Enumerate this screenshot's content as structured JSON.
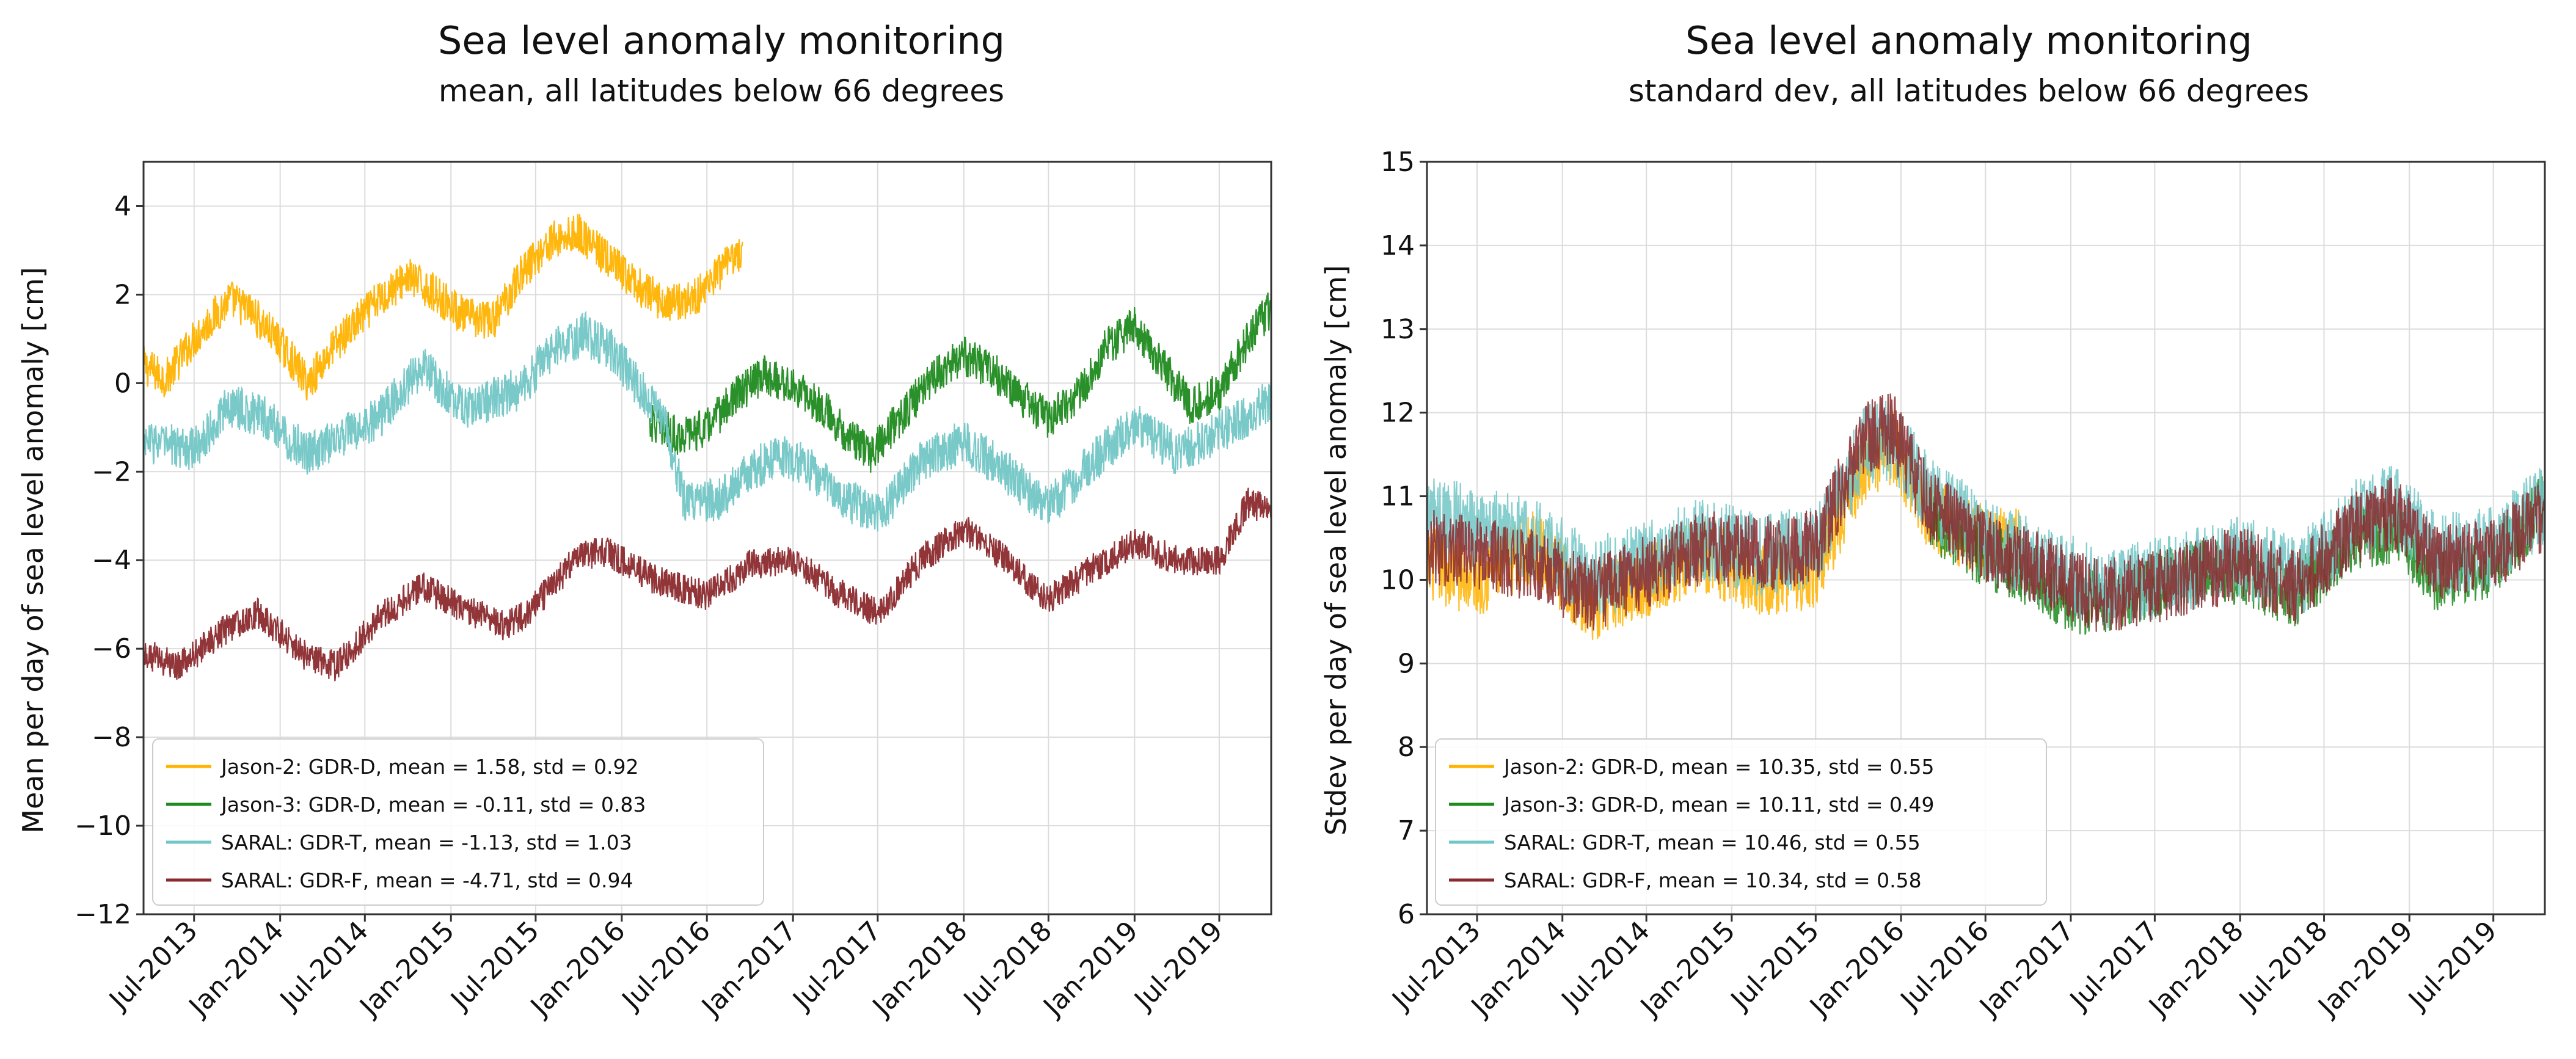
{
  "chart_data": [
    {
      "type": "line",
      "title": "Sea level anomaly monitoring",
      "subtitle": "mean, all latitudes below 66 degrees",
      "xlabel": "",
      "ylabel": "Mean per day of sea level anomaly [cm]",
      "ylim": [
        -12,
        5
      ],
      "yticks": [
        4,
        2,
        0,
        -2,
        -4,
        -6,
        -8,
        -10,
        -12
      ],
      "ytick_labels": [
        "4",
        "2",
        "0",
        "−2",
        "−4",
        "−6",
        "−8",
        "−10",
        "−12"
      ],
      "xlim": [
        "2013-03-15",
        "2019-10-20"
      ],
      "xticks": [
        "2013-07-01",
        "2014-01-01",
        "2014-07-01",
        "2015-01-01",
        "2015-07-01",
        "2016-01-01",
        "2016-07-01",
        "2017-01-01",
        "2017-07-01",
        "2018-01-01",
        "2018-07-01",
        "2019-01-01",
        "2019-07-01"
      ],
      "xtick_labels": [
        "Jul-2013",
        "Jan-2014",
        "Jul-2014",
        "Jan-2015",
        "Jul-2015",
        "Jan-2016",
        "Jul-2016",
        "Jan-2017",
        "Jul-2017",
        "Jan-2018",
        "Jul-2018",
        "Jan-2019",
        "Jul-2019"
      ],
      "grid": true,
      "legend_position": "lower-left",
      "series": [
        {
          "name": "Jason-2: GDR-D, mean = 1.58, std = 0.92",
          "color": "#ffb300",
          "start": "2013-03-15",
          "end": "2016-09-15",
          "noise": 0.45,
          "points": [
            [
              "2013-03-15",
              0.4
            ],
            [
              "2013-05-01",
              0.1
            ],
            [
              "2013-07-01",
              1.0
            ],
            [
              "2013-09-15",
              1.9
            ],
            [
              "2013-11-01",
              1.6
            ],
            [
              "2014-01-01",
              0.9
            ],
            [
              "2014-03-01",
              0.0
            ],
            [
              "2014-05-01",
              0.9
            ],
            [
              "2014-08-01",
              1.9
            ],
            [
              "2014-10-01",
              2.4
            ],
            [
              "2014-12-01",
              2.0
            ],
            [
              "2015-02-01",
              1.5
            ],
            [
              "2015-04-01",
              1.4
            ],
            [
              "2015-06-01",
              2.5
            ],
            [
              "2015-08-01",
              3.2
            ],
            [
              "2015-10-01",
              3.4
            ],
            [
              "2015-12-01",
              2.8
            ],
            [
              "2016-02-01",
              2.2
            ],
            [
              "2016-04-01",
              1.8
            ],
            [
              "2016-06-01",
              1.9
            ],
            [
              "2016-09-15",
              3.0
            ]
          ]
        },
        {
          "name": "Jason-3: GDR-D, mean = -0.11, std = 0.83",
          "color": "#1f8a1f",
          "start": "2016-03-01",
          "end": "2019-10-20",
          "noise": 0.45,
          "points": [
            [
              "2016-03-01",
              -0.9
            ],
            [
              "2016-05-01",
              -1.2
            ],
            [
              "2016-07-01",
              -1.0
            ],
            [
              "2016-09-01",
              -0.3
            ],
            [
              "2016-11-01",
              0.2
            ],
            [
              "2017-01-01",
              -0.1
            ],
            [
              "2017-03-01",
              -0.5
            ],
            [
              "2017-05-01",
              -1.2
            ],
            [
              "2017-06-15",
              -1.6
            ],
            [
              "2017-09-01",
              -0.6
            ],
            [
              "2017-11-01",
              0.2
            ],
            [
              "2018-01-01",
              0.6
            ],
            [
              "2018-03-01",
              0.3
            ],
            [
              "2018-05-01",
              -0.3
            ],
            [
              "2018-07-01",
              -0.8
            ],
            [
              "2018-09-01",
              -0.3
            ],
            [
              "2018-11-01",
              0.8
            ],
            [
              "2019-01-01",
              1.3
            ],
            [
              "2019-03-01",
              0.4
            ],
            [
              "2019-05-01",
              -0.5
            ],
            [
              "2019-07-01",
              -0.2
            ],
            [
              "2019-09-01",
              1.0
            ],
            [
              "2019-10-20",
              1.7
            ]
          ]
        },
        {
          "name": "SARAL: GDR-T, mean = -1.13, std = 1.03",
          "color": "#72c6c6",
          "start": "2013-03-15",
          "end": "2019-10-20",
          "noise": 0.5,
          "points": [
            [
              "2013-03-15",
              -1.3
            ],
            [
              "2013-07-01",
              -1.5
            ],
            [
              "2013-09-15",
              -0.5
            ],
            [
              "2013-12-01",
              -0.8
            ],
            [
              "2014-03-01",
              -1.6
            ],
            [
              "2014-08-01",
              -0.8
            ],
            [
              "2014-11-01",
              0.4
            ],
            [
              "2015-02-01",
              -0.6
            ],
            [
              "2015-06-01",
              -0.1
            ],
            [
              "2015-08-01",
              0.7
            ],
            [
              "2015-10-15",
              1.1
            ],
            [
              "2015-12-15",
              0.7
            ],
            [
              "2016-02-01",
              0.0
            ],
            [
              "2016-04-01",
              -0.9
            ],
            [
              "2016-05-15",
              -2.7
            ],
            [
              "2016-08-01",
              -2.6
            ],
            [
              "2016-10-01",
              -2.0
            ],
            [
              "2016-12-01",
              -1.6
            ],
            [
              "2017-02-01",
              -1.9
            ],
            [
              "2017-04-01",
              -2.5
            ],
            [
              "2017-07-01",
              -3.0
            ],
            [
              "2017-10-01",
              -1.8
            ],
            [
              "2018-01-01",
              -1.3
            ],
            [
              "2018-04-01",
              -2.0
            ],
            [
              "2018-07-01",
              -2.8
            ],
            [
              "2018-10-01",
              -1.8
            ],
            [
              "2019-01-01",
              -0.9
            ],
            [
              "2019-04-01",
              -1.6
            ],
            [
              "2019-07-01",
              -1.1
            ],
            [
              "2019-10-20",
              -0.4
            ]
          ]
        },
        {
          "name": "SARAL: GDR-F, mean = -4.71, std = 0.94",
          "color": "#8b2a2e",
          "start": "2013-03-15",
          "end": "2019-10-20",
          "noise": 0.35,
          "points": [
            [
              "2013-03-15",
              -6.1
            ],
            [
              "2013-06-01",
              -6.4
            ],
            [
              "2013-09-01",
              -5.6
            ],
            [
              "2013-11-15",
              -5.2
            ],
            [
              "2014-03-01",
              -6.2
            ],
            [
              "2014-05-01",
              -6.4
            ],
            [
              "2014-08-01",
              -5.3
            ],
            [
              "2014-11-01",
              -4.6
            ],
            [
              "2015-02-01",
              -5.1
            ],
            [
              "2015-05-01",
              -5.5
            ],
            [
              "2015-07-01",
              -5.0
            ],
            [
              "2015-10-01",
              -3.9
            ],
            [
              "2015-12-01",
              -3.8
            ],
            [
              "2016-03-01",
              -4.4
            ],
            [
              "2016-07-01",
              -4.8
            ],
            [
              "2016-10-01",
              -4.1
            ],
            [
              "2017-01-01",
              -4.0
            ],
            [
              "2017-04-01",
              -4.7
            ],
            [
              "2017-07-01",
              -5.2
            ],
            [
              "2017-10-01",
              -4.0
            ],
            [
              "2018-01-01",
              -3.3
            ],
            [
              "2018-04-01",
              -4.0
            ],
            [
              "2018-07-01",
              -4.9
            ],
            [
              "2018-10-01",
              -4.2
            ],
            [
              "2019-01-01",
              -3.6
            ],
            [
              "2019-04-01",
              -4.0
            ],
            [
              "2019-07-01",
              -4.0
            ],
            [
              "2019-09-01",
              -2.7
            ],
            [
              "2019-10-20",
              -2.9
            ]
          ]
        }
      ]
    },
    {
      "type": "line",
      "title": "Sea level anomaly monitoring",
      "subtitle": "standard dev, all latitudes below 66 degrees",
      "xlabel": "",
      "ylabel": "Stdev per day of sea level anomaly [cm]",
      "ylim": [
        6,
        15
      ],
      "yticks": [
        15,
        14,
        13,
        12,
        11,
        10,
        9,
        8,
        7,
        6
      ],
      "ytick_labels": [
        "15",
        "14",
        "13",
        "12",
        "11",
        "10",
        "9",
        "8",
        "7",
        "6"
      ],
      "xlim": [
        "2013-03-15",
        "2019-10-20"
      ],
      "xticks": [
        "2013-07-01",
        "2014-01-01",
        "2014-07-01",
        "2015-01-01",
        "2015-07-01",
        "2016-01-01",
        "2016-07-01",
        "2017-01-01",
        "2017-07-01",
        "2018-01-01",
        "2018-07-01",
        "2019-01-01",
        "2019-07-01"
      ],
      "xtick_labels": [
        "Jul-2013",
        "Jan-2014",
        "Jul-2014",
        "Jan-2015",
        "Jul-2015",
        "Jan-2016",
        "Jul-2016",
        "Jan-2017",
        "Jul-2017",
        "Jan-2018",
        "Jul-2018",
        "Jan-2019",
        "Jul-2019"
      ],
      "grid": true,
      "legend_position": "lower-left",
      "series": [
        {
          "name": "Jason-2: GDR-D, mean = 10.35, std = 0.55",
          "color": "#ffb300",
          "start": "2013-03-15",
          "end": "2016-09-15",
          "noise": 0.45,
          "points": [
            [
              "2013-03-15",
              10.2
            ],
            [
              "2013-07-01",
              10.0
            ],
            [
              "2013-11-01",
              10.4
            ],
            [
              "2014-03-01",
              9.7
            ],
            [
              "2014-07-01",
              10.0
            ],
            [
              "2014-11-01",
              10.3
            ],
            [
              "2015-03-01",
              10.0
            ],
            [
              "2015-07-01",
              10.1
            ],
            [
              "2015-10-15",
              11.4
            ],
            [
              "2015-12-15",
              11.6
            ],
            [
              "2016-03-01",
              10.8
            ],
            [
              "2016-06-01",
              10.5
            ],
            [
              "2016-09-15",
              10.4
            ]
          ]
        },
        {
          "name": "Jason-3: GDR-D, mean = 10.11, std = 0.49",
          "color": "#1f8a1f",
          "start": "2016-03-01",
          "end": "2019-10-20",
          "noise": 0.4,
          "points": [
            [
              "2016-03-01",
              10.7
            ],
            [
              "2016-07-01",
              10.3
            ],
            [
              "2016-11-01",
              10.0
            ],
            [
              "2017-01-01",
              9.7
            ],
            [
              "2017-05-01",
              9.8
            ],
            [
              "2017-09-01",
              10.1
            ],
            [
              "2018-01-01",
              10.1
            ],
            [
              "2018-05-01",
              9.8
            ],
            [
              "2018-09-01",
              10.5
            ],
            [
              "2018-12-01",
              10.6
            ],
            [
              "2019-03-01",
              10.0
            ],
            [
              "2019-07-01",
              10.2
            ],
            [
              "2019-10-20",
              10.9
            ]
          ]
        },
        {
          "name": "SARAL: GDR-T, mean = 10.46, std = 0.55",
          "color": "#72c6c6",
          "start": "2013-03-15",
          "end": "2019-10-20",
          "noise": 0.5,
          "points": [
            [
              "2013-03-15",
              10.8
            ],
            [
              "2013-07-01",
              10.6
            ],
            [
              "2013-11-01",
              10.5
            ],
            [
              "2014-03-01",
              10.0
            ],
            [
              "2014-07-01",
              10.2
            ],
            [
              "2014-11-01",
              10.5
            ],
            [
              "2015-03-01",
              10.3
            ],
            [
              "2015-07-01",
              10.4
            ],
            [
              "2015-10-15",
              11.6
            ],
            [
              "2015-12-15",
              11.7
            ],
            [
              "2016-03-01",
              11.0
            ],
            [
              "2016-07-01",
              10.5
            ],
            [
              "2016-11-01",
              10.2
            ],
            [
              "2017-03-01",
              9.9
            ],
            [
              "2017-07-01",
              10.0
            ],
            [
              "2018-01-01",
              10.3
            ],
            [
              "2018-05-01",
              10.0
            ],
            [
              "2018-09-01",
              10.7
            ],
            [
              "2018-12-01",
              10.9
            ],
            [
              "2019-03-01",
              10.3
            ],
            [
              "2019-07-01",
              10.4
            ],
            [
              "2019-10-20",
              10.9
            ]
          ]
        },
        {
          "name": "SARAL: GDR-F, mean = 10.34, std = 0.58",
          "color": "#8b2a2e",
          "start": "2013-03-15",
          "end": "2019-10-20",
          "noise": 0.45,
          "points": [
            [
              "2013-03-15",
              10.4
            ],
            [
              "2013-07-01",
              10.3
            ],
            [
              "2013-11-01",
              10.2
            ],
            [
              "2014-03-01",
              9.8
            ],
            [
              "2014-07-01",
              10.1
            ],
            [
              "2014-11-01",
              10.4
            ],
            [
              "2015-03-01",
              10.3
            ],
            [
              "2015-07-01",
              10.4
            ],
            [
              "2015-10-15",
              11.7
            ],
            [
              "2015-12-15",
              11.8
            ],
            [
              "2016-03-01",
              10.9
            ],
            [
              "2016-07-01",
              10.4
            ],
            [
              "2016-11-01",
              10.1
            ],
            [
              "2017-03-01",
              9.8
            ],
            [
              "2017-07-01",
              9.9
            ],
            [
              "2018-01-01",
              10.2
            ],
            [
              "2018-05-01",
              9.9
            ],
            [
              "2018-09-01",
              10.6
            ],
            [
              "2018-12-01",
              10.8
            ],
            [
              "2019-03-01",
              10.2
            ],
            [
              "2019-07-01",
              10.3
            ],
            [
              "2019-10-20",
              10.8
            ]
          ]
        }
      ]
    }
  ]
}
